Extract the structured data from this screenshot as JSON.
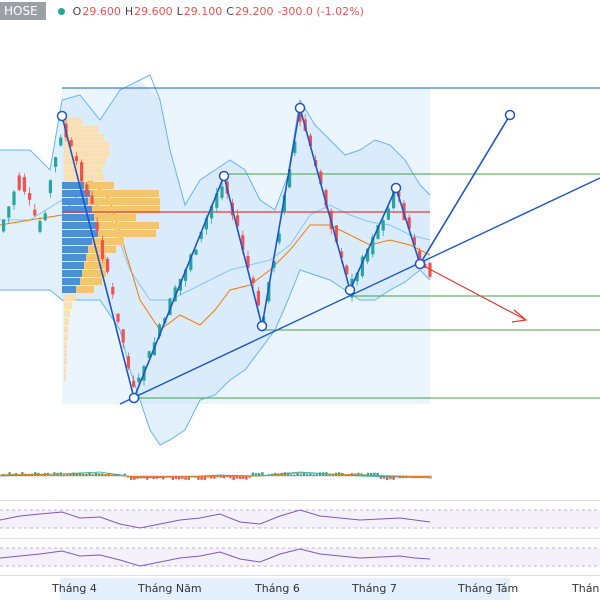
{
  "legend": {
    "symbol": "HOSE",
    "o_label": "O",
    "o_value": "29.600",
    "h_label": "H",
    "h_value": "29.600",
    "l_label": "L",
    "l_value": "29.100",
    "c_label": "C",
    "c_value": "29.200",
    "change": "-300.0 (-1.02%)"
  },
  "x_axis": {
    "ticks": [
      "Tháng 4",
      "Tháng Năm",
      "Tháng 6",
      "Tháng 7",
      "Tháng Tám",
      "Tháng"
    ]
  },
  "colors": {
    "up": "#26a69a",
    "down": "#ef5350",
    "bollinger": "#64b5f6",
    "bollinger_fill": "#e3f2fd",
    "pattern": "#1565c0",
    "level": "#43a047",
    "resistance": "#e53935",
    "volume_profile": "#f5c56e",
    "volume_profile_blue": "#4a90d9",
    "ma": "#f57c00",
    "oscillator": "#7e57c2"
  }
}
